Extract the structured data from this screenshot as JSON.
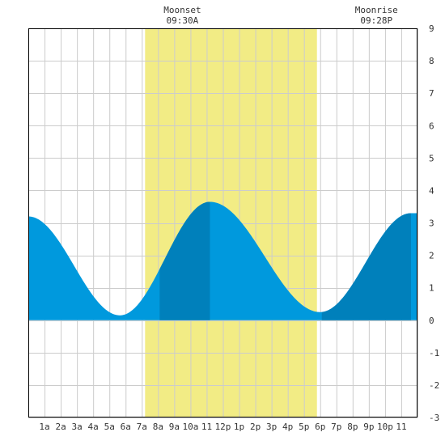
{
  "chart_data": {
    "type": "area",
    "title": "",
    "xlabel": "",
    "ylabel": "",
    "x_unit": "hour of day",
    "xlim": [
      0,
      24
    ],
    "ylim": [
      -3,
      9
    ],
    "y_ticks": [
      -3,
      -2,
      -1,
      0,
      1,
      2,
      3,
      4,
      5,
      6,
      7,
      8,
      9
    ],
    "x_tick_labels": [
      {
        "hour": 1,
        "label": "1a"
      },
      {
        "hour": 2,
        "label": "2a"
      },
      {
        "hour": 3,
        "label": "3a"
      },
      {
        "hour": 4,
        "label": "4a"
      },
      {
        "hour": 5,
        "label": "5a"
      },
      {
        "hour": 6,
        "label": "6a"
      },
      {
        "hour": 7,
        "label": "7a"
      },
      {
        "hour": 8,
        "label": "8a"
      },
      {
        "hour": 9,
        "label": "9a"
      },
      {
        "hour": 10,
        "label": "10a"
      },
      {
        "hour": 11,
        "label": "11"
      },
      {
        "hour": 12,
        "label": "12p"
      },
      {
        "hour": 13,
        "label": "1p"
      },
      {
        "hour": 14,
        "label": "2p"
      },
      {
        "hour": 15,
        "label": "3p"
      },
      {
        "hour": 16,
        "label": "4p"
      },
      {
        "hour": 17,
        "label": "5p"
      },
      {
        "hour": 18,
        "label": "6p"
      },
      {
        "hour": 19,
        "label": "7p"
      },
      {
        "hour": 20,
        "label": "8p"
      },
      {
        "hour": 21,
        "label": "9p"
      },
      {
        "hour": 22,
        "label": "10p"
      },
      {
        "hour": 23,
        "label": "11"
      }
    ],
    "grid": true,
    "tide_extrema": [
      {
        "hour": 0.0,
        "height": 3.2
      },
      {
        "hour": 5.65,
        "height": 0.15
      },
      {
        "hour": 11.2,
        "height": 3.65
      },
      {
        "hour": 18.0,
        "height": 0.25
      },
      {
        "hour": 23.6,
        "height": 3.3
      }
    ],
    "data_end_hour": 24.0,
    "moon_up_interval": [
      7.2,
      17.8
    ],
    "dark_shade_intervals": [
      [
        8.1,
        11.2
      ],
      [
        18.1,
        23.6
      ]
    ],
    "moon_events": [
      {
        "label": "Moonset",
        "time": "09:30A",
        "hour": 9.5
      },
      {
        "label": "Moonrise",
        "time": "09:28P",
        "hour": 21.47
      }
    ],
    "colors": {
      "tide": "#0099dd",
      "tide_dark": "#0080bb",
      "moon_up": "#f2ec85",
      "grid": "#cccccc",
      "axis": "#000000",
      "background": "#ffffff"
    }
  }
}
